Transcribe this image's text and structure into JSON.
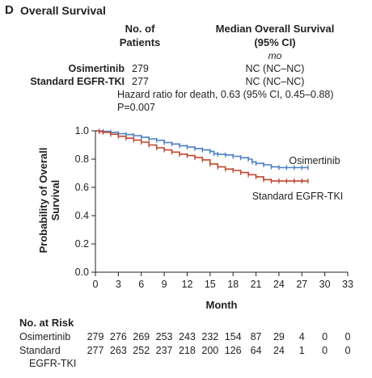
{
  "panel": {
    "letter": "D",
    "title": "Overall Survival"
  },
  "table": {
    "col_patients": [
      "No. of",
      "Patients"
    ],
    "col_median": [
      "Median Overall Survival",
      "(95% CI)"
    ],
    "unit": "mo",
    "rows": [
      {
        "arm": "Osimertinib",
        "patients": "279",
        "median": "NC (NC–NC)"
      },
      {
        "arm": "Standard EGFR-TKI",
        "patients": "277",
        "median": "NC (NC–NC)"
      }
    ],
    "hazard_ratio": "Hazard ratio for death, 0.63 (95% CI, 0.45–0.88)",
    "p_value": "P=0.007"
  },
  "chart_data": {
    "type": "line",
    "ylabel": [
      "Probability of Overall",
      "Survival"
    ],
    "xlabel": "Month",
    "ylim": [
      0.0,
      1.0
    ],
    "xlim": [
      0,
      33
    ],
    "x_ticks": [
      0,
      3,
      6,
      9,
      12,
      15,
      18,
      21,
      24,
      27,
      30,
      33
    ],
    "y_ticks": [
      0.0,
      0.2,
      0.4,
      0.6,
      0.8,
      1.0
    ],
    "y_tick_labels": [
      "0.0",
      "0.2",
      "0.4",
      "0.6",
      "0.8",
      "1.0"
    ],
    "series": [
      {
        "name": "Osimertinib",
        "color": "#4a7fc1",
        "x": [
          0,
          0.5,
          1,
          2,
          3,
          4,
          5,
          6,
          7,
          8,
          9,
          10,
          11,
          12,
          13,
          14,
          15,
          15.5,
          16,
          17,
          18,
          19,
          20,
          20.5,
          21,
          22,
          23,
          24,
          25,
          26,
          27,
          27.8
        ],
        "y": [
          1.0,
          0.998,
          0.996,
          0.99,
          0.98,
          0.974,
          0.966,
          0.955,
          0.943,
          0.933,
          0.917,
          0.907,
          0.895,
          0.885,
          0.875,
          0.865,
          0.855,
          0.838,
          0.834,
          0.83,
          0.82,
          0.81,
          0.8,
          0.78,
          0.77,
          0.76,
          0.745,
          0.74,
          0.74,
          0.74,
          0.74,
          0.74
        ]
      },
      {
        "name": "Standard EGFR-TKI",
        "color": "#c0452d",
        "x": [
          0,
          0.5,
          1,
          2,
          3,
          4,
          5,
          6,
          7,
          8,
          9,
          10,
          11,
          12,
          13,
          14,
          15,
          16,
          17,
          18,
          19,
          20,
          21,
          22,
          23,
          24,
          25,
          26,
          27,
          27.8
        ],
        "y": [
          1.0,
          0.995,
          0.99,
          0.976,
          0.962,
          0.948,
          0.935,
          0.92,
          0.9,
          0.88,
          0.865,
          0.85,
          0.835,
          0.825,
          0.812,
          0.795,
          0.765,
          0.745,
          0.73,
          0.72,
          0.705,
          0.69,
          0.675,
          0.655,
          0.645,
          0.645,
          0.645,
          0.645,
          0.645,
          0.645
        ]
      }
    ],
    "series_labels": [
      "Osimertinib",
      "Standard EGFR-TKI"
    ]
  },
  "risk": {
    "title": "No. at Risk",
    "rows": [
      {
        "label": [
          "Osimertinib"
        ],
        "counts": [
          "279",
          "276",
          "269",
          "253",
          "243",
          "232",
          "154",
          "87",
          "29",
          "4",
          "0",
          "0"
        ]
      },
      {
        "label": [
          "Standard",
          "EGFR-TKI"
        ],
        "counts": [
          "277",
          "263",
          "252",
          "237",
          "218",
          "200",
          "126",
          "64",
          "24",
          "1",
          "0",
          "0"
        ]
      }
    ]
  }
}
